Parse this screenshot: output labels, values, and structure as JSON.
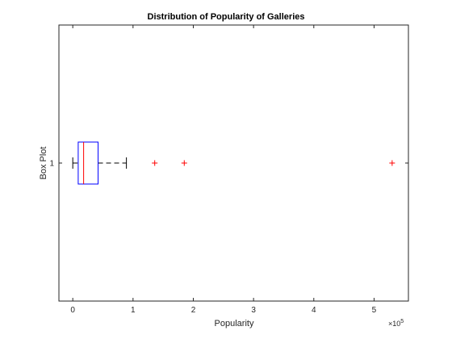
{
  "chart_data": {
    "type": "boxplot",
    "orientation": "horizontal",
    "title": "Distribution of Popularity of Galleries",
    "xlabel": "Popularity",
    "ylabel": "Box Plot",
    "x_multiplier": {
      "base": "×10",
      "exponent": "5"
    },
    "xlim": [
      -0.23,
      5.57
    ],
    "ylim": [
      0.5,
      1.5
    ],
    "x_ticks": [
      {
        "value": 0,
        "label": "0"
      },
      {
        "value": 1,
        "label": "1"
      },
      {
        "value": 2,
        "label": "2"
      },
      {
        "value": 3,
        "label": "3"
      },
      {
        "value": 4,
        "label": "4"
      },
      {
        "value": 5,
        "label": "5"
      }
    ],
    "y_ticks": [
      {
        "value": 1,
        "label": "1"
      }
    ],
    "box": {
      "position": 1,
      "whisker_low": 0.0,
      "q1": 0.09,
      "median": 0.18,
      "q3": 0.42,
      "whisker_high": 0.89
    },
    "outliers": [
      1.36,
      1.85,
      5.3
    ],
    "colors": {
      "box": "#0000ff",
      "median": "#ff0000",
      "whisker": "#000000",
      "outlier": "#ff0000",
      "axes": "#262626"
    },
    "grid": false
  }
}
